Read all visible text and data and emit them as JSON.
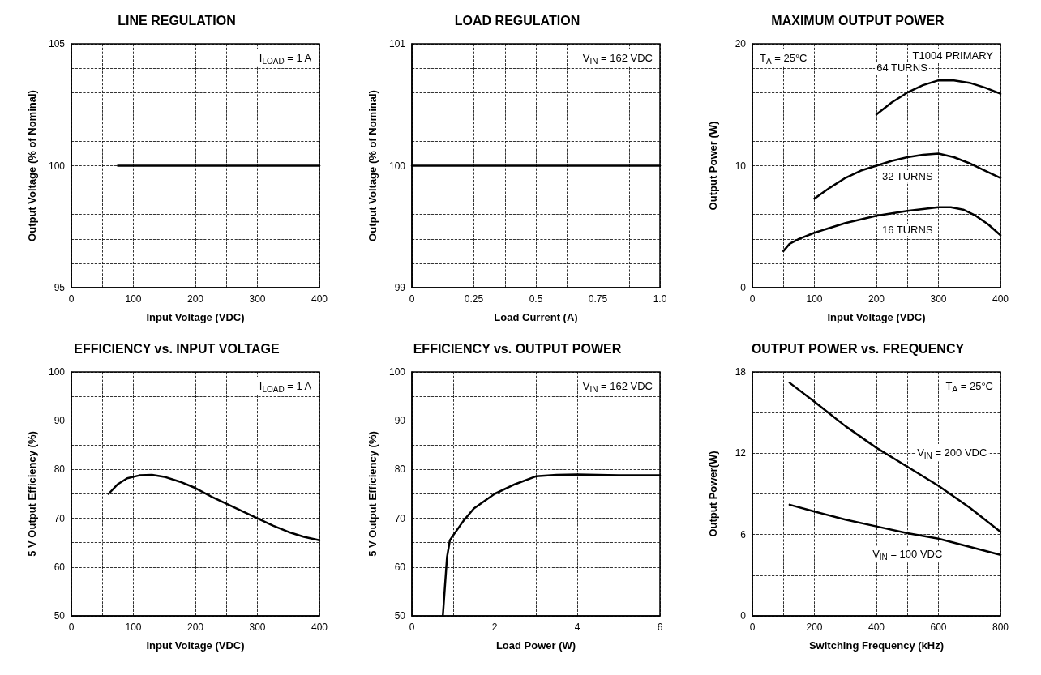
{
  "chart_data": [
    {
      "type": "line",
      "title": "LINE REGULATION",
      "xlabel": "Input Voltage (VDC)",
      "ylabel": "Output Voltage (% of Nominal)",
      "annotations": [
        "I$_{LOAD}$ = 1 A"
      ],
      "xlim": [
        0,
        400
      ],
      "ylim": [
        95,
        105
      ],
      "xticks": [
        0,
        {
          "value": 50,
          "label": null
        },
        100,
        {
          "value": 150,
          "label": null
        },
        200,
        {
          "value": 250,
          "label": null
        },
        300,
        {
          "value": 350,
          "label": null
        },
        400
      ],
      "yticks": [
        95,
        {
          "value": 96,
          "label": null
        },
        {
          "value": 97,
          "label": null
        },
        {
          "value": 98,
          "label": null
        },
        {
          "value": 99,
          "label": null
        },
        100,
        {
          "value": 101,
          "label": null
        },
        {
          "value": 102,
          "label": null
        },
        {
          "value": 103,
          "label": null
        },
        {
          "value": 104,
          "label": null
        },
        105
      ],
      "grid": true,
      "marker": "none",
      "series": [
        {
          "color": "#000000",
          "x": [
            75,
            400
          ],
          "values": [
            100,
            100
          ]
        }
      ]
    },
    {
      "type": "line",
      "title": "LOAD REGULATION",
      "xlabel": "Load Current (A)",
      "ylabel": "Output Voltage (% of Nominal)",
      "annotations": [
        "V$_{IN}$ = 162 VDC"
      ],
      "xlim": [
        0,
        1
      ],
      "ylim": [
        99,
        101
      ],
      "xticks": [
        0,
        {
          "value": 0.125,
          "label": null
        },
        0.25,
        {
          "value": 0.375,
          "label": null
        },
        0.5,
        {
          "value": 0.625,
          "label": null
        },
        0.75,
        {
          "value": 0.875,
          "label": null
        },
        {
          "value": 1,
          "label": "1.0"
        }
      ],
      "yticks": [
        99,
        {
          "value": 99.2,
          "label": null
        },
        {
          "value": 99.4,
          "label": null
        },
        {
          "value": 99.6,
          "label": null
        },
        {
          "value": 99.8,
          "label": null
        },
        100,
        {
          "value": 100.2,
          "label": null
        },
        {
          "value": 100.4,
          "label": null
        },
        {
          "value": 100.6,
          "label": null
        },
        {
          "value": 100.8,
          "label": null
        },
        101
      ],
      "grid": true,
      "marker": "none",
      "series": [
        {
          "color": "#000000",
          "line_style": "solid",
          "x": [
            0,
            1
          ],
          "values": [
            100,
            100
          ]
        }
      ]
    },
    {
      "type": "line",
      "title": "MAXIMUM OUTPUT POWER",
      "xlabel": "Input Voltage (VDC)",
      "ylabel": "Output Power (W)",
      "annotations": [
        "T$_{A}$ = 25°C",
        "T1004 PRIMARY"
      ],
      "xlim": [
        0,
        400
      ],
      "ylim": [
        0,
        20
      ],
      "xticks": [
        0,
        {
          "value": 50,
          "label": null
        },
        100,
        {
          "value": 150,
          "label": null
        },
        200,
        {
          "value": 250,
          "label": null
        },
        300,
        {
          "value": 350,
          "label": null
        },
        400
      ],
      "yticks": [
        0,
        {
          "value": 2,
          "label": null
        },
        {
          "value": 4,
          "label": null
        },
        {
          "value": 6,
          "label": null
        },
        {
          "value": 8,
          "label": null
        },
        10,
        {
          "value": 12,
          "label": null
        },
        {
          "value": 14,
          "label": null
        },
        {
          "value": 16,
          "label": null
        },
        {
          "value": 18,
          "label": null
        },
        20
      ],
      "grid": true,
      "marker": "none",
      "series": [
        {
          "name": "64 TURNS",
          "color": "#000000",
          "x": [
            200,
            225,
            250,
            275,
            300,
            325,
            350,
            375,
            400
          ],
          "values": [
            14.2,
            15.2,
            16,
            16.6,
            17,
            17,
            16.8,
            16.4,
            15.9
          ]
        },
        {
          "name": "32 TURNS",
          "color": "#000000",
          "x": [
            100,
            125,
            150,
            175,
            200,
            225,
            250,
            275,
            300,
            325,
            350,
            375,
            400
          ],
          "values": [
            7.3,
            8.2,
            9,
            9.6,
            10,
            10.4,
            10.7,
            10.9,
            11,
            10.7,
            10.2,
            9.6,
            9
          ]
        },
        {
          "name": "16 TURNS",
          "color": "#000000",
          "x": [
            50,
            60,
            75,
            100,
            150,
            200,
            250,
            300,
            320,
            340,
            360,
            380,
            400
          ],
          "values": [
            3,
            3.6,
            4,
            4.5,
            5.3,
            5.9,
            6.3,
            6.6,
            6.6,
            6.4,
            5.9,
            5.2,
            4.3
          ]
        }
      ]
    },
    {
      "type": "line",
      "title": "EFFICIENCY vs. INPUT VOLTAGE",
      "xlabel": "Input Voltage (VDC)",
      "ylabel": "5 V Output Efficiency (%)",
      "annotations": [
        "I$_{LOAD}$ = 1 A"
      ],
      "xlim": [
        0,
        400
      ],
      "ylim": [
        50,
        100
      ],
      "xticks": [
        0,
        {
          "value": 50,
          "label": null
        },
        100,
        {
          "value": 150,
          "label": null
        },
        200,
        {
          "value": 250,
          "label": null
        },
        300,
        {
          "value": 350,
          "label": null
        },
        400
      ],
      "yticks": [
        50,
        {
          "value": 55,
          "label": null
        },
        60,
        {
          "value": 65,
          "label": null
        },
        70,
        {
          "value": 75,
          "label": null
        },
        80,
        {
          "value": 85,
          "label": null
        },
        90,
        {
          "value": 95,
          "label": null
        },
        100
      ],
      "grid": true,
      "marker": "none",
      "series": [
        {
          "color": "#000000",
          "x": [
            60,
            75,
            90,
            110,
            130,
            150,
            175,
            200,
            225,
            250,
            275,
            300,
            325,
            350,
            375,
            400
          ],
          "values": [
            75,
            77,
            78.2,
            78.8,
            78.9,
            78.5,
            77.5,
            76.2,
            74.5,
            73,
            71.5,
            70,
            68.5,
            67.2,
            66.2,
            65.5
          ]
        }
      ]
    },
    {
      "type": "line",
      "title": "EFFICIENCY vs. OUTPUT POWER",
      "xlabel": "Load Power (W)",
      "ylabel": "5 V Output Efficiency (%)",
      "annotations": [
        "V$_{IN}$ = 162 VDC"
      ],
      "xlim": [
        0,
        6
      ],
      "ylim": [
        50,
        100
      ],
      "xticks": [
        0,
        {
          "value": 1,
          "label": null
        },
        2,
        {
          "value": 3,
          "label": null
        },
        4,
        {
          "value": 5,
          "label": null
        },
        6
      ],
      "yticks": [
        50,
        {
          "value": 55,
          "label": null
        },
        60,
        {
          "value": 65,
          "label": null
        },
        70,
        {
          "value": 75,
          "label": null
        },
        80,
        {
          "value": 85,
          "label": null
        },
        90,
        {
          "value": 95,
          "label": null
        },
        100
      ],
      "grid": true,
      "marker": "none",
      "series": [
        {
          "color": "#000000",
          "x": [
            0.75,
            0.8,
            0.85,
            0.92,
            1,
            1.25,
            1.5,
            2,
            2.5,
            3,
            3.5,
            4,
            5,
            6
          ],
          "values": [
            50,
            56,
            62,
            65.5,
            66.5,
            69.5,
            72,
            75,
            77,
            78.6,
            78.9,
            79,
            78.8,
            78.8
          ]
        }
      ]
    },
    {
      "type": "line",
      "title": "OUTPUT POWER vs. FREQUENCY",
      "xlabel": "Switching Frequency (kHz)",
      "ylabel": "Output Power(W)",
      "annotations": [
        "T$_{A}$ = 25°C"
      ],
      "xlim": [
        0,
        800
      ],
      "ylim": [
        0,
        18
      ],
      "xticks": [
        0,
        {
          "value": 100,
          "label": null
        },
        200,
        {
          "value": 300,
          "label": null
        },
        400,
        {
          "value": 500,
          "label": null
        },
        600,
        {
          "value": 700,
          "label": null
        },
        800
      ],
      "yticks": [
        0,
        {
          "value": 3,
          "label": null
        },
        6,
        {
          "value": 9,
          "label": null
        },
        12,
        {
          "value": 15,
          "label": null
        },
        18
      ],
      "grid": true,
      "marker": "none",
      "series": [
        {
          "name": "V$_{IN}$ = 200 VDC",
          "color": "#000000",
          "x": [
            120,
            200,
            300,
            400,
            500,
            600,
            700,
            800
          ],
          "values": [
            17.2,
            15.8,
            14,
            12.4,
            11,
            9.6,
            8,
            6.2
          ]
        },
        {
          "name": "V$_{IN}$ = 100 VDC",
          "color": "#000000",
          "x": [
            120,
            200,
            300,
            400,
            500,
            600,
            700,
            800
          ],
          "values": [
            8.2,
            7.7,
            7.1,
            6.6,
            6.1,
            5.7,
            5.1,
            4.5
          ]
        }
      ]
    }
  ]
}
